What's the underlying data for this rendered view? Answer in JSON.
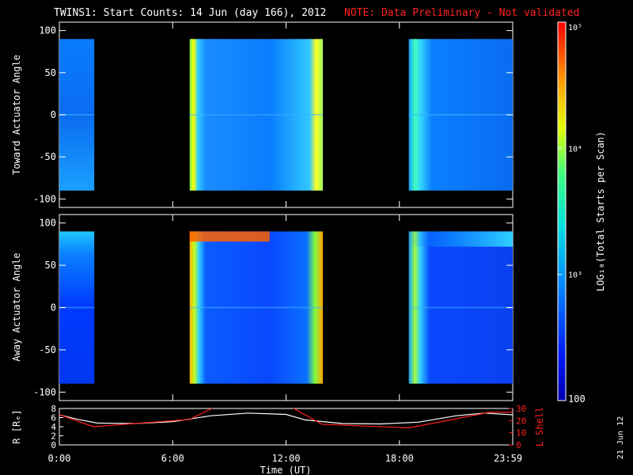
{
  "header": {
    "title": "TWINS1: Start Counts: 14 Jun (day 166), 2012",
    "note": "NOTE: Data Preliminary - Not validated"
  },
  "footer": {
    "x_axis_label": "Time (UT)",
    "date_stamp": "21 Jun 12"
  },
  "chart_data": [
    {
      "type": "heatmap",
      "ylabel": "Toward Actuator Angle",
      "ylim": [
        -110,
        110
      ],
      "yticks": [
        -100,
        -50,
        0,
        50,
        100
      ],
      "xlim_hours": [
        0,
        24
      ],
      "xtick_labels": [
        "0:00",
        "6:00",
        "12:00",
        "18:00",
        "23:59"
      ],
      "data_blocks_hours": [
        [
          0.0,
          1.85
        ],
        [
          6.9,
          13.95
        ],
        [
          18.5,
          24.0
        ]
      ],
      "angle_range": [
        -90,
        90
      ]
    },
    {
      "type": "heatmap",
      "ylabel": "Away Actuator Angle",
      "ylim": [
        -110,
        110
      ],
      "yticks": [
        -100,
        -50,
        0,
        50,
        100
      ],
      "xlim_hours": [
        0,
        24
      ],
      "xtick_labels": [
        "0:00",
        "6:00",
        "12:00",
        "18:00",
        "23:59"
      ],
      "data_blocks_hours": [
        [
          0.0,
          1.85
        ],
        [
          6.9,
          13.95
        ],
        [
          18.5,
          24.0
        ]
      ],
      "angle_range": [
        -90,
        90
      ]
    },
    {
      "type": "line",
      "ylabel_left": "R [Rₑ]",
      "ylabel_right": "L Shell",
      "ylim_left": [
        0,
        8
      ],
      "yticks_left": [
        0,
        2,
        4,
        6,
        8
      ],
      "ylim_right": [
        0,
        30
      ],
      "yticks_right": [
        0,
        10,
        20,
        30
      ],
      "series": [
        {
          "color": "#ffffff",
          "x": [
            0,
            1,
            2,
            4,
            6,
            8,
            10,
            12,
            13,
            15,
            17,
            19,
            21,
            22.5,
            24
          ],
          "y": [
            6.6,
            5.6,
            4.8,
            4.7,
            5.1,
            6.4,
            7.0,
            6.7,
            5.5,
            4.7,
            4.6,
            5.0,
            6.4,
            7.0,
            6.6
          ]
        },
        {
          "color": "#ff2020",
          "x": [
            0,
            1.8,
            3.5,
            6.9,
            8.2,
            8.6,
            12.3,
            13.9,
            18.5,
            22.8,
            24
          ],
          "y": [
            25,
            15,
            17,
            21,
            31,
            31,
            31,
            17,
            14,
            27,
            27
          ]
        }
      ]
    }
  ],
  "colorbar": {
    "label": "LOG₁₀(Total Starts per Scan)",
    "tick_labels": [
      "100",
      "10³",
      "10⁴",
      "10⁵"
    ],
    "range_log10": [
      2,
      5
    ]
  }
}
